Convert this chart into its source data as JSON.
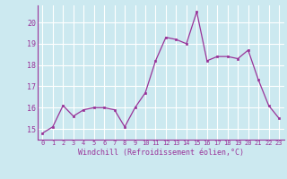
{
  "x": [
    0,
    1,
    2,
    3,
    4,
    5,
    6,
    7,
    8,
    9,
    10,
    11,
    12,
    13,
    14,
    15,
    16,
    17,
    18,
    19,
    20,
    21,
    22,
    23
  ],
  "y": [
    14.8,
    15.1,
    16.1,
    15.6,
    15.9,
    16.0,
    16.0,
    15.9,
    15.1,
    16.0,
    16.7,
    18.2,
    19.3,
    19.2,
    19.0,
    20.5,
    18.2,
    18.4,
    18.4,
    18.3,
    18.7,
    17.3,
    16.1,
    15.5
  ],
  "xlim": [
    -0.5,
    23.5
  ],
  "ylim": [
    14.5,
    20.8
  ],
  "yticks": [
    15,
    16,
    17,
    18,
    19,
    20
  ],
  "xtick_labels": [
    "0",
    "1",
    "2",
    "3",
    "4",
    "5",
    "6",
    "7",
    "8",
    "9",
    "10",
    "11",
    "12",
    "13",
    "14",
    "15",
    "16",
    "17",
    "18",
    "19",
    "20",
    "21",
    "22",
    "23"
  ],
  "xlabel": "Windchill (Refroidissement éolien,°C)",
  "line_color": "#993399",
  "marker_color": "#993399",
  "bg_color": "#cce9f0",
  "grid_color": "#ffffff",
  "title_color": "#993399",
  "font_color": "#993399"
}
